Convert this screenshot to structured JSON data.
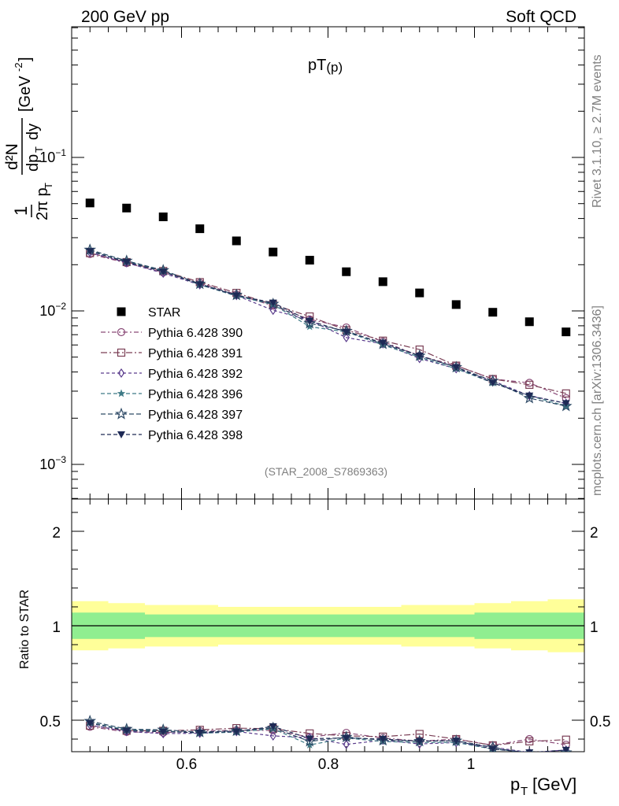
{
  "header": {
    "left": "200 GeV pp",
    "right": "Soft QCD",
    "side_top": "Rivet 3.1.10, ≥ 2.7M events",
    "side_bottom": "mcplots.cern.ch [arXiv:1306.3436]",
    "analysis": "(STAR_2008_S7869363)"
  },
  "chart_data": [
    {
      "type": "scatter",
      "title": "pT(p)",
      "xlabel": "p_T [GeV]",
      "ylabel": "1/(2π p_T) d²N/(dp_T dy) [GeV^-2]",
      "yscale": "log",
      "xlim": [
        0.45,
        1.15
      ],
      "ylim": [
        0.0006,
        0.8
      ],
      "ytick_labels": [
        "10^-3",
        "10^-2",
        "10^-1"
      ],
      "legend_position": "left-middle",
      "x": [
        0.475,
        0.525,
        0.575,
        0.625,
        0.675,
        0.725,
        0.775,
        0.825,
        0.875,
        0.925,
        0.975,
        1.025,
        1.075,
        1.125
      ],
      "series": [
        {
          "name": "STAR",
          "color": "#000000",
          "marker": "square",
          "values": [
            0.0505,
            0.0468,
            0.041,
            0.0343,
            0.0286,
            0.0242,
            0.0214,
            0.018,
            0.0155,
            0.0131,
            0.011,
            0.0098,
            0.0085,
            0.0073
          ]
        },
        {
          "name": "Pythia 6.428 390",
          "color": "#8a4a78",
          "marker": "circle",
          "values": [
            0.0235,
            0.0205,
            0.0178,
            0.0152,
            0.0128,
            0.0108,
            0.0088,
            0.0078,
            0.0063,
            0.0051,
            0.0044,
            0.0036,
            0.0034,
            0.0027
          ]
        },
        {
          "name": "Pythia 6.428 391",
          "color": "#7a3e55",
          "marker": "square-open",
          "values": [
            0.0238,
            0.0208,
            0.0182,
            0.0154,
            0.0131,
            0.011,
            0.0092,
            0.0075,
            0.0064,
            0.0056,
            0.0044,
            0.0036,
            0.0033,
            0.0029
          ]
        },
        {
          "name": "Pythia 6.428 392",
          "color": "#5a3c8c",
          "marker": "diamond-open",
          "values": [
            0.024,
            0.0206,
            0.0176,
            0.0148,
            0.0126,
            0.0101,
            0.0087,
            0.0067,
            0.0061,
            0.0049,
            0.0042,
            0.0035,
            0.0028,
            0.0025
          ]
        },
        {
          "name": "Pythia 6.428 396",
          "color": "#3e7a86",
          "marker": "star",
          "values": [
            0.0246,
            0.021,
            0.0182,
            0.0148,
            0.0125,
            0.011,
            0.0079,
            0.0073,
            0.006,
            0.005,
            0.0042,
            0.0034,
            0.0028,
            0.0024
          ]
        },
        {
          "name": "Pythia 6.428 397",
          "color": "#2e4a66",
          "marker": "star-open",
          "values": [
            0.025,
            0.0212,
            0.0184,
            0.015,
            0.0127,
            0.0111,
            0.0083,
            0.0074,
            0.0061,
            0.0051,
            0.0043,
            0.0035,
            0.0027,
            0.0024
          ]
        },
        {
          "name": "Pythia 6.428 398",
          "color": "#1e2a55",
          "marker": "triangle-down",
          "values": [
            0.0245,
            0.0208,
            0.018,
            0.0149,
            0.0126,
            0.0113,
            0.0086,
            0.0073,
            0.0062,
            0.0051,
            0.0043,
            0.0034,
            0.0028,
            0.0025
          ]
        }
      ]
    },
    {
      "type": "scatter",
      "title": "",
      "xlabel": "p_T [GeV]",
      "ylabel": "Ratio to STAR",
      "xlim": [
        0.45,
        1.15
      ],
      "ylim": [
        0.35,
        2.35
      ],
      "xtick_labels": [
        "0.6",
        "0.8",
        "1"
      ],
      "ytick_labels": [
        "0.5",
        "1",
        "2"
      ],
      "band_colors": {
        "inner": "#90ee90",
        "outer": "#ffff99"
      },
      "band_inner": [
        0.07,
        0.07,
        0.06,
        0.06,
        0.06,
        0.06,
        0.06,
        0.06,
        0.06,
        0.06,
        0.06,
        0.07,
        0.07,
        0.07
      ],
      "band_outer": [
        0.13,
        0.12,
        0.11,
        0.11,
        0.1,
        0.1,
        0.1,
        0.1,
        0.1,
        0.11,
        0.11,
        0.12,
        0.13,
        0.14
      ],
      "series": [
        {
          "name": "Pythia 6.428 390",
          "values": [
            0.465,
            0.438,
            0.434,
            0.443,
            0.447,
            0.446,
            0.411,
            0.433,
            0.406,
            0.389,
            0.4,
            0.367,
            0.4,
            0.37
          ]
        },
        {
          "name": "Pythia 6.428 391",
          "values": [
            0.471,
            0.444,
            0.444,
            0.449,
            0.458,
            0.455,
            0.43,
            0.417,
            0.413,
            0.427,
            0.4,
            0.367,
            0.388,
            0.397
          ]
        },
        {
          "name": "Pythia 6.428 392",
          "values": [
            0.475,
            0.44,
            0.429,
            0.431,
            0.44,
            0.417,
            0.407,
            0.372,
            0.394,
            0.374,
            0.382,
            0.357,
            0.329,
            0.342
          ]
        },
        {
          "name": "Pythia 6.428 396",
          "values": [
            0.487,
            0.449,
            0.444,
            0.431,
            0.437,
            0.455,
            0.369,
            0.406,
            0.387,
            0.382,
            0.382,
            0.347,
            0.329,
            0.329
          ]
        },
        {
          "name": "Pythia 6.428 397",
          "values": [
            0.495,
            0.453,
            0.449,
            0.437,
            0.444,
            0.459,
            0.388,
            0.411,
            0.394,
            0.389,
            0.391,
            0.357,
            0.318,
            0.329
          ]
        },
        {
          "name": "Pythia 6.428 398",
          "values": [
            0.485,
            0.444,
            0.439,
            0.434,
            0.44,
            0.467,
            0.402,
            0.406,
            0.4,
            0.389,
            0.391,
            0.347,
            0.329,
            0.342
          ]
        }
      ]
    }
  ]
}
